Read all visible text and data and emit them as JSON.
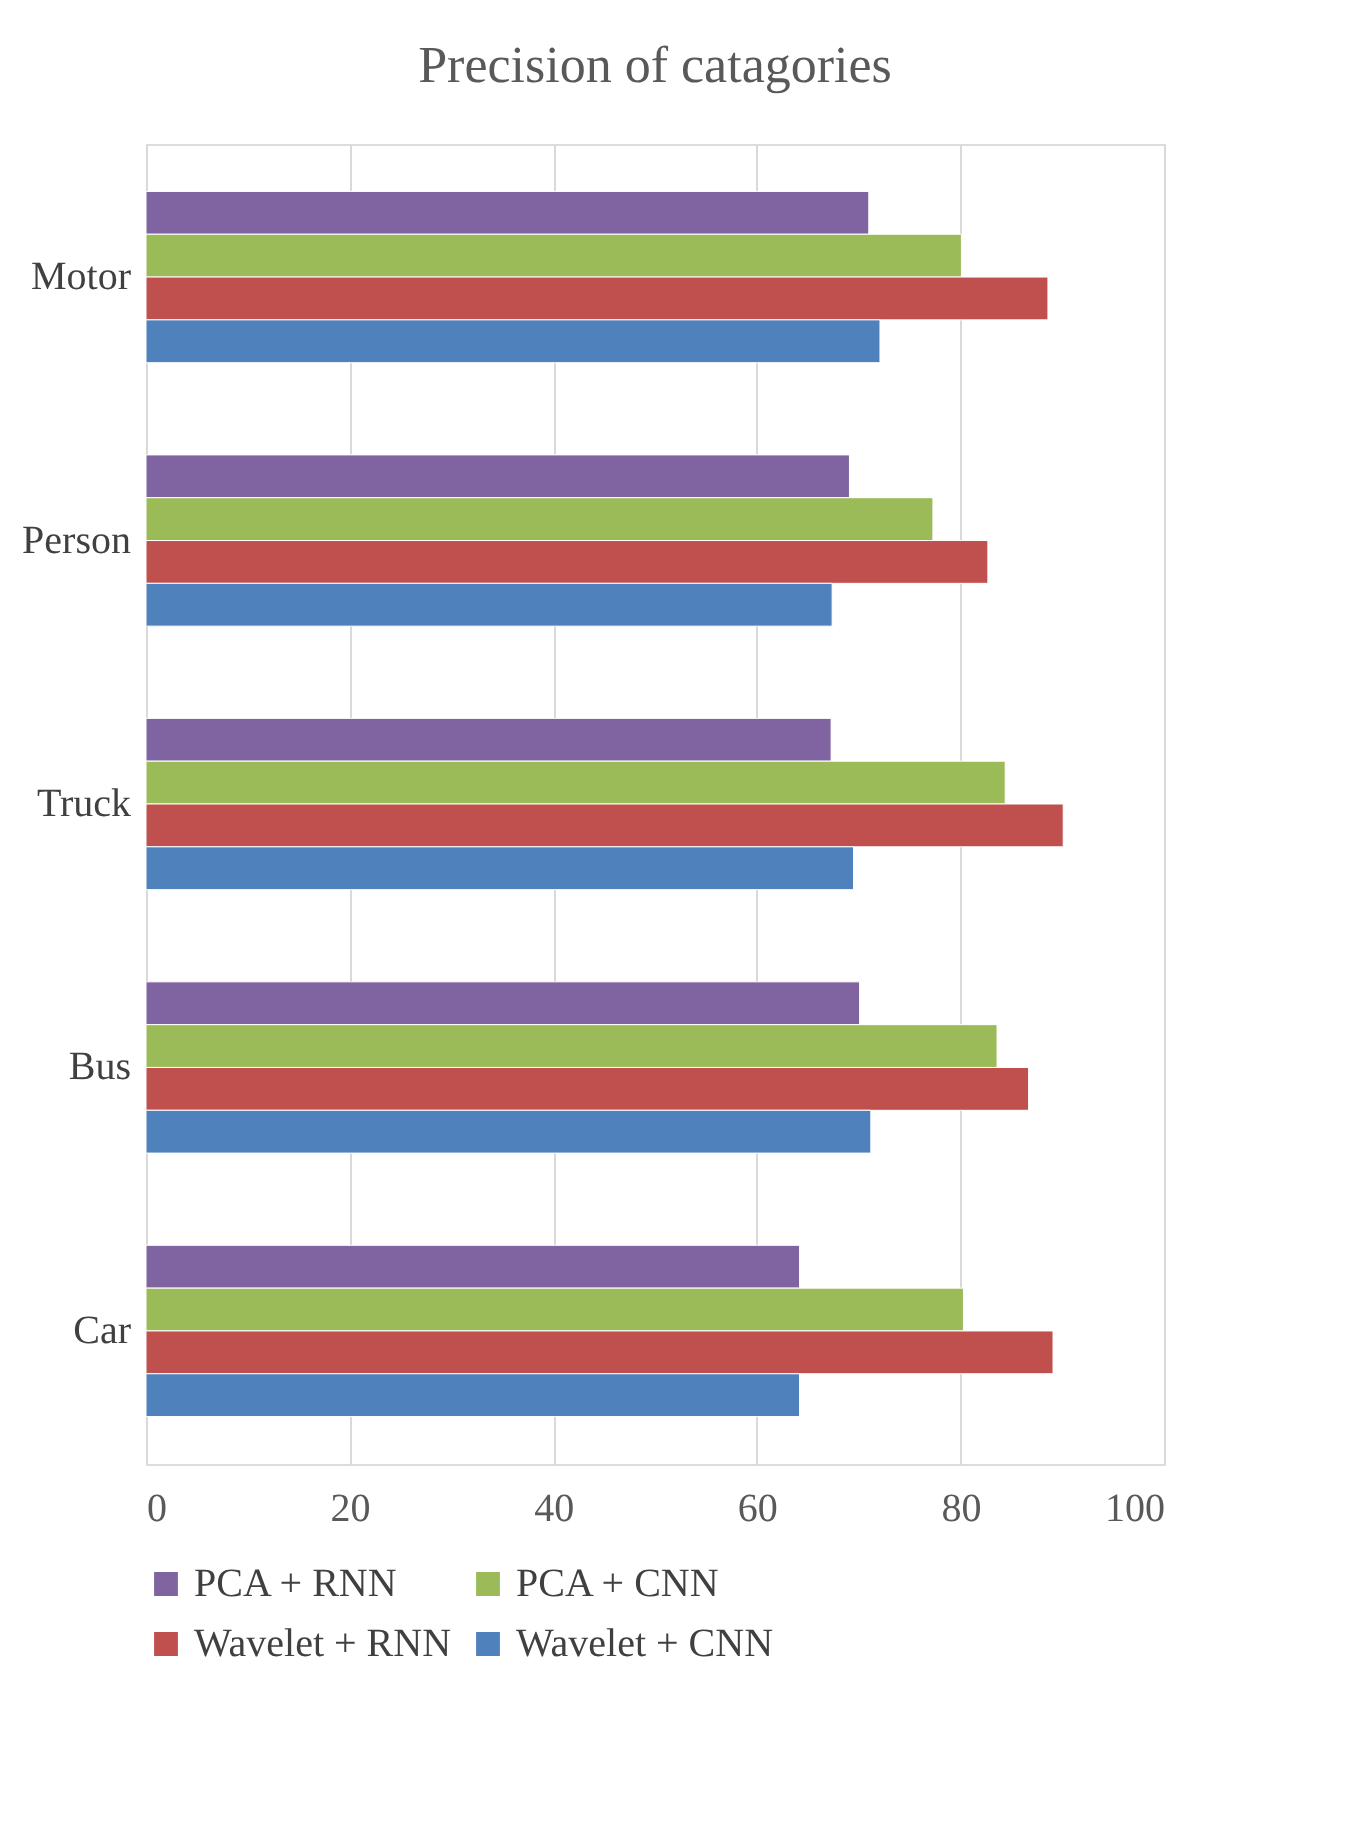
{
  "chart_data": {
    "type": "bar",
    "orientation": "horizontal",
    "title": "Precision of catagories",
    "categories": [
      "Motor",
      "Person",
      "Truck",
      "Bus",
      "Car"
    ],
    "series": [
      {
        "name": "PCA + RNN",
        "color": "#8064a2",
        "values": [
          71.0,
          69.1,
          67.3,
          70.1,
          64.2
        ]
      },
      {
        "name": "PCA + CNN",
        "color": "#9bbb59",
        "values": [
          80.1,
          77.3,
          84.4,
          83.6,
          80.3
        ]
      },
      {
        "name": "Wavelet + RNN",
        "color": "#c0504d",
        "values": [
          88.6,
          82.7,
          90.1,
          86.7,
          89.1
        ]
      },
      {
        "name": "Wavelet + CNN",
        "color": "#4f81bd",
        "values": [
          72.1,
          67.4,
          69.5,
          71.2,
          64.2
        ]
      }
    ],
    "xlim": [
      0,
      100
    ],
    "xticks": [
      0,
      20,
      40,
      60,
      80,
      100
    ],
    "grid": "x",
    "legend": "bottom"
  }
}
